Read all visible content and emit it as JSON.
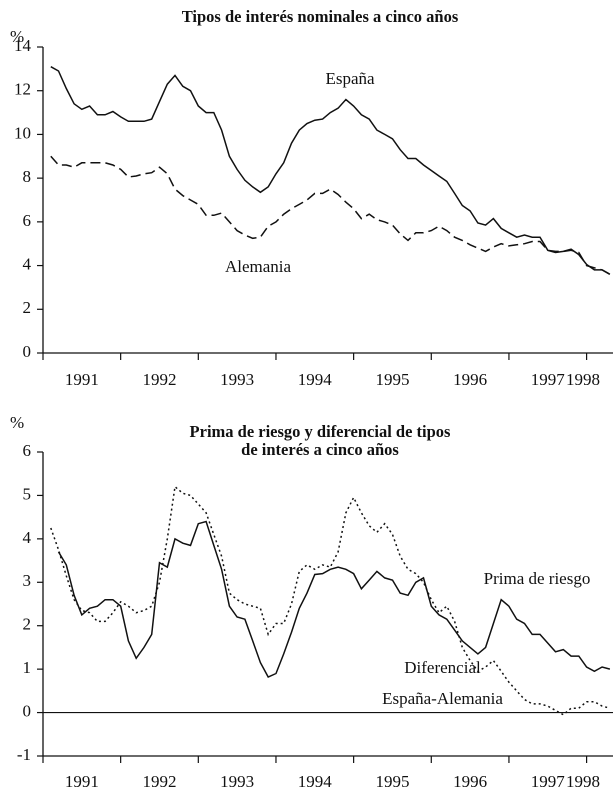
{
  "chart_data": [
    {
      "type": "line",
      "title": "Tipos de interés nominales a cinco años",
      "ylabel": "%",
      "x": [
        1991.1,
        1991.2,
        1991.3,
        1991.4,
        1991.5,
        1991.6,
        1991.7,
        1991.8,
        1991.9,
        1992,
        1992.1,
        1992.2,
        1992.3,
        1992.4,
        1992.5,
        1992.6,
        1992.7,
        1992.8,
        1992.9,
        1993,
        1993.1,
        1993.2,
        1993.3,
        1993.4,
        1993.5,
        1993.6,
        1993.7,
        1993.8,
        1993.9,
        1994,
        1994.1,
        1994.2,
        1994.3,
        1994.4,
        1994.5,
        1994.6,
        1994.7,
        1994.8,
        1994.9,
        1995,
        1995.1,
        1995.2,
        1995.3,
        1995.4,
        1995.5,
        1995.6,
        1995.7,
        1995.8,
        1995.9,
        1996,
        1996.1,
        1996.2,
        1996.3,
        1996.4,
        1996.5,
        1996.6,
        1996.7,
        1996.8,
        1996.9,
        1997,
        1997.1,
        1997.2,
        1997.3,
        1997.4,
        1997.5,
        1997.6,
        1997.7,
        1997.8,
        1997.9,
        1998,
        1998.1,
        1998.2,
        1998.3
      ],
      "series": [
        {
          "name": "España",
          "color": "#111111",
          "style": "solid",
          "values": [
            13.1,
            12.9,
            12.1,
            11.4,
            11.15,
            11.3,
            10.9,
            10.9,
            11.05,
            10.8,
            10.6,
            10.6,
            10.6,
            10.7,
            11.5,
            12.3,
            12.7,
            12.2,
            12.0,
            11.3,
            11.0,
            11.0,
            10.2,
            9.0,
            8.4,
            7.9,
            7.6,
            7.35,
            7.6,
            8.2,
            8.7,
            9.6,
            10.2,
            10.5,
            10.65,
            10.7,
            11.0,
            11.2,
            11.6,
            11.3,
            10.9,
            10.7,
            10.2,
            10.0,
            9.8,
            9.3,
            8.9,
            8.9,
            8.6,
            8.35,
            8.1,
            7.85,
            7.3,
            6.75,
            6.5,
            5.95,
            5.85,
            6.15,
            5.7,
            5.5,
            5.3,
            5.4,
            5.3,
            5.3,
            4.7,
            4.6,
            4.65,
            4.75,
            4.5,
            4.05,
            3.8,
            3.8,
            3.6
          ]
        },
        {
          "name": "Alemania",
          "color": "#111111",
          "style": "dashed",
          "values": [
            9.0,
            8.6,
            8.6,
            8.5,
            8.7,
            8.7,
            8.7,
            8.7,
            8.6,
            8.4,
            8.05,
            8.1,
            8.2,
            8.25,
            8.5,
            8.2,
            7.5,
            7.2,
            7.0,
            6.8,
            6.3,
            6.3,
            6.4,
            6.0,
            5.6,
            5.4,
            5.25,
            5.3,
            5.8,
            6.0,
            6.35,
            6.6,
            6.8,
            7.0,
            7.3,
            7.3,
            7.5,
            7.25,
            6.9,
            6.6,
            6.15,
            6.35,
            6.1,
            6.0,
            5.85,
            5.45,
            5.15,
            5.5,
            5.5,
            5.6,
            5.8,
            5.6,
            5.3,
            5.15,
            4.95,
            4.8,
            4.65,
            4.85,
            5.0,
            4.9,
            4.95,
            5.0,
            5.1,
            5.1,
            4.7,
            4.65,
            4.65,
            4.7,
            4.6,
            4.0,
            3.9,
            3.8,
            3.6
          ]
        }
      ],
      "xlim": [
        1991,
        1998.34
      ],
      "xticks": [
        1991,
        1992,
        1993,
        1994,
        1995,
        1996,
        1997,
        1998
      ],
      "ylim": [
        0,
        14
      ],
      "yticks": [
        0,
        2,
        4,
        6,
        8,
        10,
        12,
        14
      ],
      "grid": false
    },
    {
      "type": "line",
      "title": [
        "Prima de riesgo y diferencial de tipos",
        "de interés a cinco años"
      ],
      "ylabel": "%",
      "x": [
        1991.1,
        1991.2,
        1991.3,
        1991.4,
        1991.5,
        1991.6,
        1991.7,
        1991.8,
        1991.9,
        1992,
        1992.1,
        1992.2,
        1992.3,
        1992.4,
        1992.5,
        1992.6,
        1992.7,
        1992.8,
        1992.9,
        1993,
        1993.1,
        1993.2,
        1993.3,
        1993.4,
        1993.5,
        1993.6,
        1993.7,
        1993.8,
        1993.9,
        1994,
        1994.1,
        1994.2,
        1994.3,
        1994.4,
        1994.5,
        1994.6,
        1994.7,
        1994.8,
        1994.9,
        1995,
        1995.1,
        1995.2,
        1995.3,
        1995.4,
        1995.5,
        1995.6,
        1995.7,
        1995.8,
        1995.9,
        1996,
        1996.1,
        1996.2,
        1996.3,
        1996.4,
        1996.5,
        1996.6,
        1996.7,
        1996.8,
        1996.9,
        1997,
        1997.1,
        1997.2,
        1997.3,
        1997.4,
        1997.5,
        1997.6,
        1997.7,
        1997.8,
        1997.9,
        1998,
        1998.1,
        1998.2,
        1998.3
      ],
      "series": [
        {
          "name": "Prima de riesgo",
          "color": "#111111",
          "style": "solid",
          "values": [
            null,
            3.7,
            3.4,
            2.7,
            2.25,
            2.4,
            2.45,
            2.6,
            2.6,
            2.45,
            1.65,
            1.25,
            1.5,
            1.8,
            3.45,
            3.35,
            4.0,
            3.9,
            3.85,
            4.35,
            4.4,
            3.85,
            3.3,
            2.45,
            2.2,
            2.15,
            1.65,
            1.15,
            0.82,
            0.9,
            1.35,
            1.85,
            2.4,
            2.75,
            3.18,
            3.2,
            3.3,
            3.35,
            3.3,
            3.2,
            2.85,
            3.05,
            3.25,
            3.1,
            3.05,
            2.75,
            2.7,
            3.0,
            3.1,
            2.45,
            2.25,
            2.15,
            1.9,
            1.65,
            1.5,
            1.35,
            1.5,
            2.05,
            2.6,
            2.45,
            2.15,
            2.05,
            1.8,
            1.8,
            1.6,
            1.4,
            1.45,
            1.3,
            1.3,
            1.05,
            0.95,
            1.05,
            1.0
          ]
        },
        {
          "name": "Diferencial España-Alemania",
          "color": "#111111",
          "style": "dotted",
          "values": [
            4.25,
            3.75,
            3.15,
            2.6,
            2.35,
            2.3,
            2.1,
            2.1,
            2.3,
            2.55,
            2.45,
            2.3,
            2.35,
            2.45,
            3.0,
            4.0,
            5.2,
            5.05,
            5.0,
            4.8,
            4.6,
            4.1,
            3.6,
            2.75,
            2.6,
            2.5,
            2.45,
            2.4,
            1.8,
            2.05,
            2.05,
            2.5,
            3.25,
            3.4,
            3.3,
            3.4,
            3.35,
            3.7,
            4.6,
            4.95,
            4.6,
            4.3,
            4.15,
            4.35,
            4.1,
            3.6,
            3.3,
            3.2,
            3.0,
            2.6,
            2.3,
            2.45,
            2.1,
            1.5,
            1.2,
            0.95,
            1.05,
            1.2,
            0.95,
            0.7,
            0.5,
            0.3,
            0.2,
            0.2,
            0.15,
            0.05,
            -0.05,
            0.1,
            0.1,
            0.25,
            0.25,
            0.15,
            0.1
          ]
        }
      ],
      "xlim": [
        1991,
        1998.34
      ],
      "xticks": [
        1991,
        1992,
        1993,
        1994,
        1995,
        1996,
        1997,
        1998
      ],
      "ylim": [
        -1,
        6
      ],
      "yticks": [
        -1,
        0,
        1,
        2,
        3,
        4,
        5,
        6
      ],
      "grid": false
    }
  ]
}
